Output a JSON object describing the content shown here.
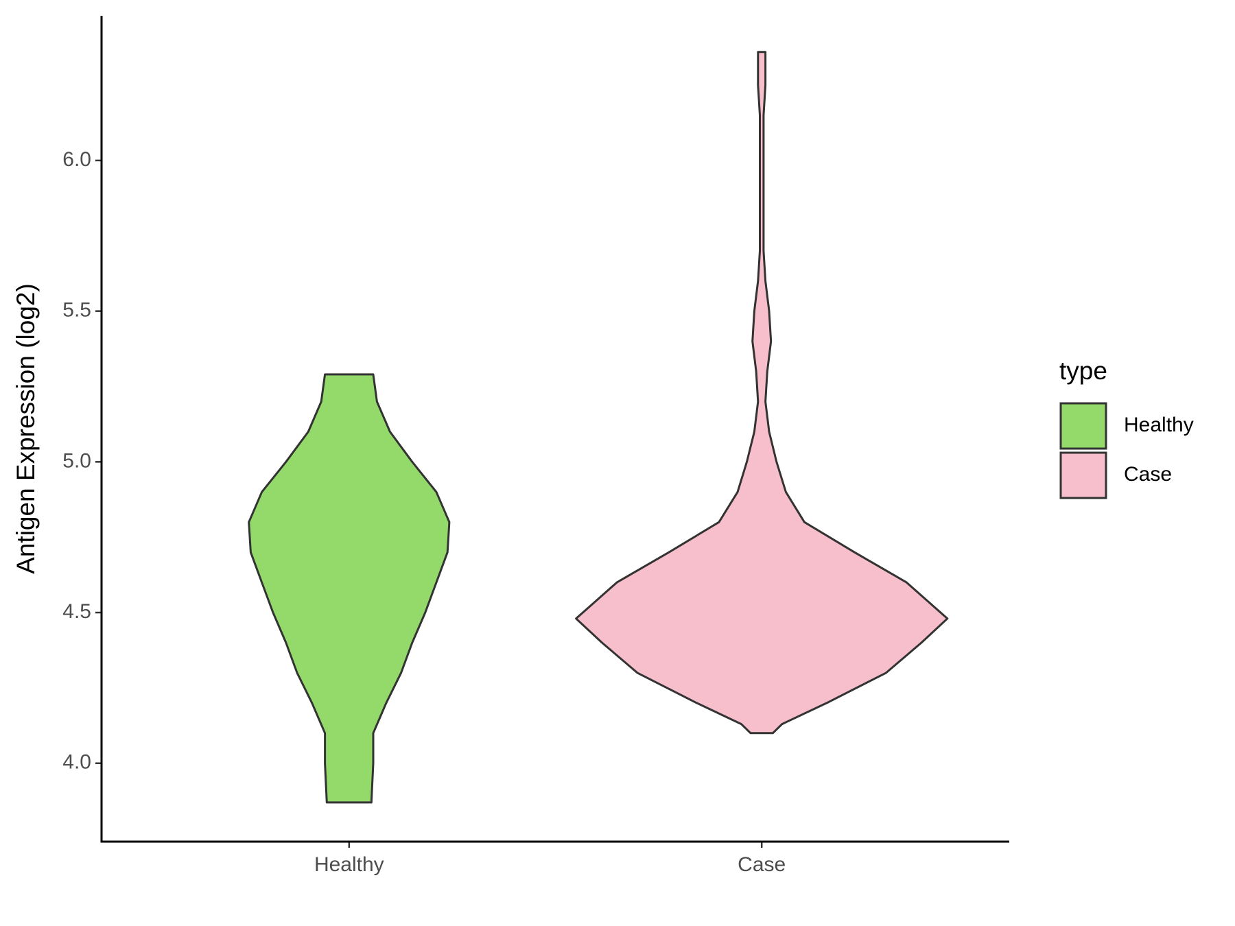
{
  "chart_data": {
    "type": "violin",
    "y_label": "Antigen Expression (log2)",
    "categories": [
      "Healthy",
      "Case"
    ],
    "legend_title": "type",
    "legend_position": "right",
    "ylim": [
      3.74,
      6.48
    ],
    "yticks": [
      {
        "value": 4,
        "label": "4.0"
      },
      {
        "value": 4.5,
        "label": "4.5"
      },
      {
        "value": 5,
        "label": "5.0"
      },
      {
        "value": 5.5,
        "label": "5.5"
      },
      {
        "value": 6,
        "label": "6.0"
      }
    ],
    "series": [
      {
        "name": "Healthy",
        "color": "#93da6a",
        "y": [
          3.87,
          4.0,
          4.1,
          4.2,
          4.3,
          4.4,
          4.5,
          4.6,
          4.7,
          4.8,
          4.9,
          5.0,
          5.1,
          5.2,
          5.29
        ],
        "density": [
          0.12,
          0.13,
          0.13,
          0.2,
          0.28,
          0.34,
          0.41,
          0.47,
          0.53,
          0.54,
          0.47,
          0.34,
          0.22,
          0.15,
          0.13
        ]
      },
      {
        "name": "Case",
        "color": "#f7bfcb",
        "y": [
          4.1,
          4.13,
          4.2,
          4.3,
          4.4,
          4.48,
          4.6,
          4.7,
          4.8,
          4.9,
          5.0,
          5.1,
          5.2,
          5.3,
          5.4,
          5.5,
          5.6,
          5.7,
          6.0,
          6.15,
          6.25,
          6.36
        ],
        "density": [
          0.06,
          0.11,
          0.35,
          0.67,
          0.86,
          1,
          0.78,
          0.5,
          0.23,
          0.13,
          0.08,
          0.04,
          0.02,
          0.03,
          0.05,
          0.04,
          0.02,
          0.01,
          0.01,
          0.01,
          0.02,
          0.02
        ]
      }
    ]
  }
}
